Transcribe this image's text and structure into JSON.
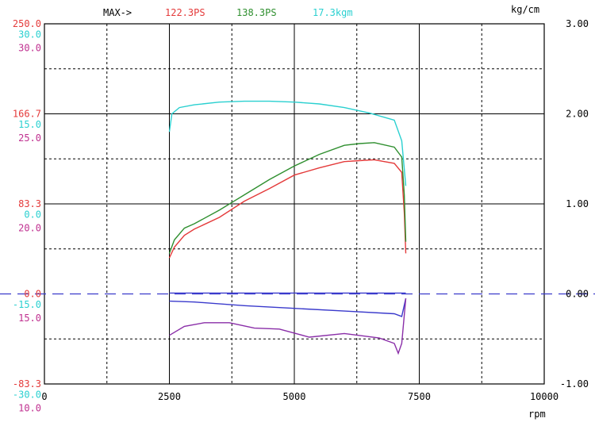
{
  "header": {
    "max_label": "MAX->",
    "max_values": [
      {
        "text": "122.3PS",
        "color": "#e43a3a"
      },
      {
        "text": "138.3PS",
        "color": "#2f8f2f"
      },
      {
        "text": "17.3kgm",
        "color": "#2ad0d0"
      }
    ]
  },
  "right_axis": {
    "unit": "kg/cm",
    "ticks": [
      "3.00",
      "2.00",
      "1.00",
      "0.00",
      "-1.00"
    ]
  },
  "left_axis": {
    "labels": [
      {
        "text": "250.0",
        "color": "#e43a3a",
        "row": 0
      },
      {
        "text": "30.0",
        "color": "#2ad0d0",
        "row": 0.12
      },
      {
        "text": "30.0",
        "color": "#c03090",
        "row": 0.27
      },
      {
        "text": "166.7",
        "color": "#e43a3a",
        "row": 1
      },
      {
        "text": "15.0",
        "color": "#2ad0d0",
        "row": 1.12
      },
      {
        "text": "25.0",
        "color": "#c03090",
        "row": 1.27
      },
      {
        "text": "83.3",
        "color": "#e43a3a",
        "row": 2
      },
      {
        "text": "0.0",
        "color": "#2ad0d0",
        "row": 2.12
      },
      {
        "text": "20.0",
        "color": "#c03090",
        "row": 2.27
      },
      {
        "text": "0.0",
        "color": "#e43a3a",
        "row": 3
      },
      {
        "text": "-15.0",
        "color": "#2ad0d0",
        "row": 3.12
      },
      {
        "text": "15.0",
        "color": "#c03090",
        "row": 3.27
      },
      {
        "text": "-83.3",
        "color": "#e43a3a",
        "row": 4
      },
      {
        "text": "-30.0",
        "color": "#2ad0d0",
        "row": 4.12
      },
      {
        "text": "10.0",
        "color": "#c03090",
        "row": 4.27
      }
    ]
  },
  "chart_data": {
    "type": "line",
    "xlabel": "rpm",
    "xlim": [
      0,
      10000
    ],
    "x_ticks": [
      0,
      2500,
      5000,
      7500,
      10000
    ],
    "y_right_lim": [
      -1.0,
      3.0
    ],
    "grid": true,
    "series": [
      {
        "name": "122.3PS",
        "color": "#e43a3a",
        "x": [
          2500,
          2600,
          2800,
          3000,
          3500,
          4000,
          4500,
          5000,
          5500,
          6000,
          6300,
          6600,
          7000,
          7150,
          7200,
          7230
        ],
        "y": [
          0.4,
          0.52,
          0.65,
          0.72,
          0.85,
          1.03,
          1.17,
          1.32,
          1.4,
          1.47,
          1.48,
          1.49,
          1.45,
          1.35,
          0.9,
          0.45
        ]
      },
      {
        "name": "138.3PS",
        "color": "#2f8f2f",
        "x": [
          2500,
          2600,
          2800,
          3000,
          3500,
          4000,
          4500,
          5000,
          5500,
          6000,
          6300,
          6600,
          7000,
          7150,
          7200,
          7230
        ],
        "y": [
          0.45,
          0.6,
          0.73,
          0.78,
          0.93,
          1.1,
          1.27,
          1.42,
          1.55,
          1.65,
          1.67,
          1.68,
          1.63,
          1.52,
          1.1,
          0.58
        ]
      },
      {
        "name": "17.3kgm",
        "color": "#2ad0d0",
        "x": [
          2500,
          2550,
          2700,
          3000,
          3500,
          4000,
          4500,
          5000,
          5500,
          6000,
          6500,
          7000,
          7150,
          7230
        ],
        "y": [
          1.8,
          2.0,
          2.07,
          2.1,
          2.13,
          2.14,
          2.14,
          2.13,
          2.11,
          2.07,
          2.01,
          1.93,
          1.7,
          1.2
        ]
      },
      {
        "color": "#3a3acc",
        "x": [
          2500,
          7230
        ],
        "y": [
          0.01,
          0.01
        ]
      },
      {
        "color": "#3a3acc",
        "x": [
          2500,
          3000,
          4000,
          5000,
          6000,
          7000,
          7150,
          7230
        ],
        "y": [
          -0.08,
          -0.09,
          -0.13,
          -0.16,
          -0.19,
          -0.22,
          -0.25,
          -0.05
        ]
      },
      {
        "color": "#8a2ea8",
        "x": [
          2500,
          2800,
          3200,
          3700,
          4200,
          4700,
          5300,
          6000,
          6700,
          7000,
          7080,
          7150,
          7230
        ],
        "y": [
          -0.46,
          -0.36,
          -0.32,
          -0.32,
          -0.38,
          -0.39,
          -0.48,
          -0.44,
          -0.49,
          -0.55,
          -0.66,
          -0.55,
          -0.05
        ]
      }
    ]
  }
}
